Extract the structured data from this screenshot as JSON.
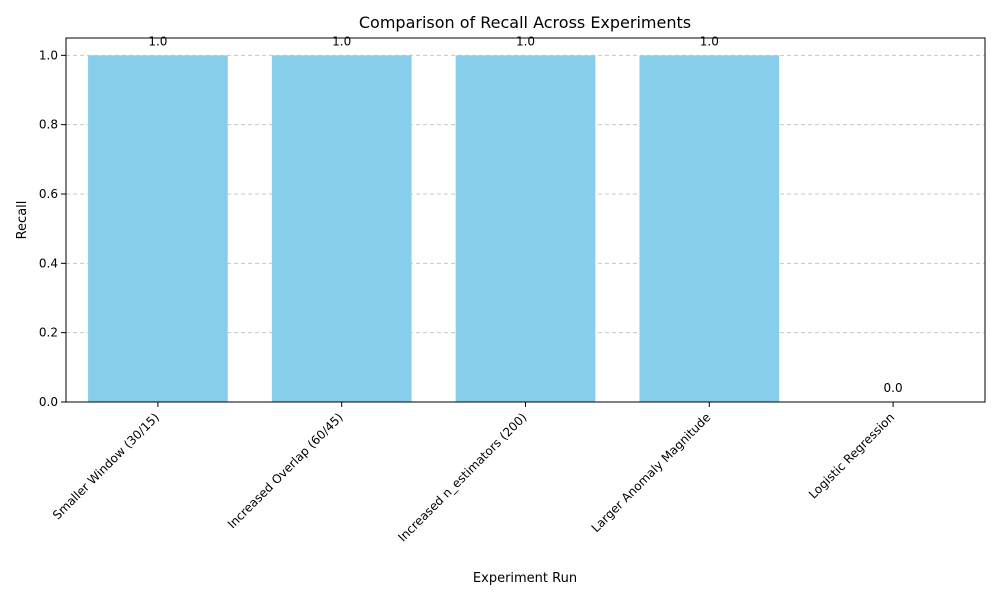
{
  "chart_data": {
    "type": "bar",
    "title": "Comparison of Recall Across Experiments",
    "xlabel": "Experiment Run",
    "ylabel": "Recall",
    "categories": [
      "Smaller Window (30/15)",
      "Increased Overlap (60/45)",
      "Increased n_estimators (200)",
      "Larger Anomaly Magnitude",
      "Logistic Regression"
    ],
    "values": [
      1.0,
      1.0,
      1.0,
      1.0,
      0.0
    ],
    "value_labels": [
      "1.0",
      "1.0",
      "1.0",
      "1.0",
      "0.0"
    ],
    "ylim": [
      0,
      1.05
    ],
    "yticks": [
      0.0,
      0.2,
      0.4,
      0.6,
      0.8,
      1.0
    ],
    "ytick_labels": [
      "0.0",
      "0.2",
      "0.4",
      "0.6",
      "0.8",
      "1.0"
    ],
    "grid": "y-axis, dashed",
    "legend": "none",
    "bar_color": "#87ceeb",
    "grid_color": "#c8c8c8"
  }
}
